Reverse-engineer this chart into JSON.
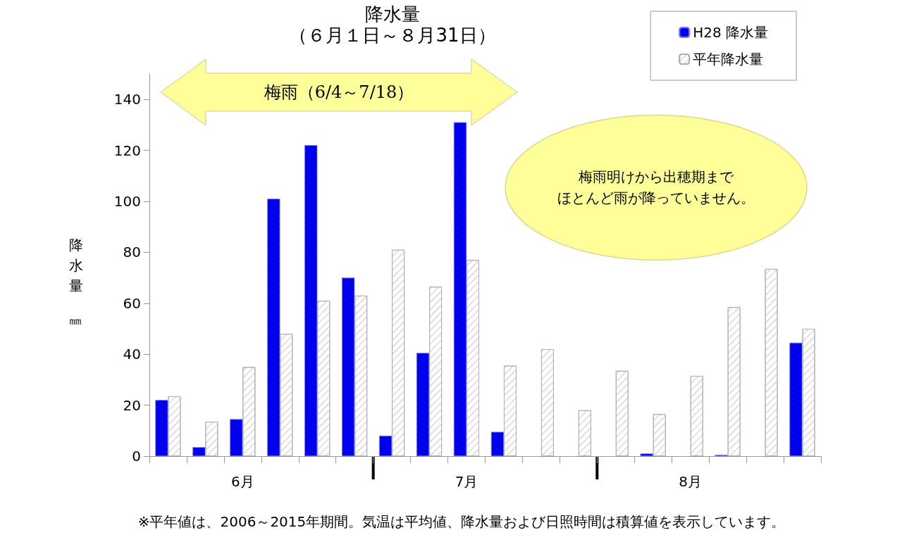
{
  "chart_data": {
    "type": "bar",
    "title": "降水量",
    "subtitle": "（６月１日～８月31日）",
    "ylabel": "降水量㎜",
    "categories": [
      null,
      null,
      "6月",
      null,
      null,
      null,
      null,
      null,
      "7月",
      null,
      null,
      null,
      null,
      null,
      "8月",
      null,
      null,
      null
    ],
    "series": [
      {
        "name": "H28 降水量",
        "color": "#0000ff",
        "values": [
          22,
          3.5,
          14.5,
          101,
          122,
          70,
          8,
          40.5,
          131,
          9.5,
          null,
          null,
          null,
          1,
          null,
          0.5,
          null,
          44.5
        ]
      },
      {
        "name": "平年降水量",
        "color": "#ffffff",
        "values": [
          23.5,
          13.5,
          35,
          48,
          61,
          63,
          81,
          66.5,
          77,
          35.5,
          42,
          18,
          33.5,
          16.5,
          31.5,
          58.5,
          73.5,
          50
        ]
      }
    ],
    "ylim": [
      0,
      150
    ],
    "yticks": [
      0,
      20,
      40,
      60,
      80,
      100,
      120,
      140
    ],
    "grid": false,
    "legend": "top right",
    "annotations": [
      "梅雨（6/4～7/18）",
      "梅雨明けから出穂期までほとんど雨が降っていません。",
      "※平年値は、2006～2015年期間。気温は平均値、降水量および日照時間は積算値を表示しています。"
    ]
  }
}
